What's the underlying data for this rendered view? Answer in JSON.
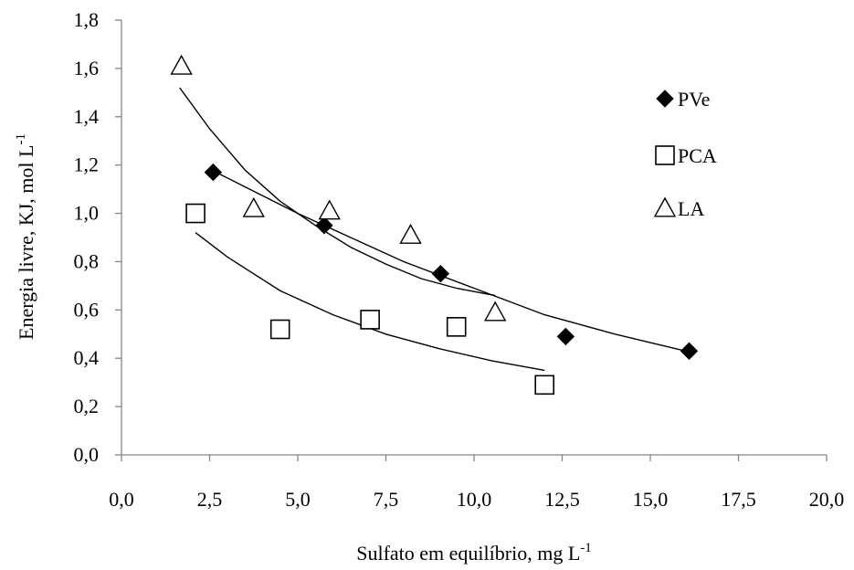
{
  "chart_data": {
    "type": "scatter",
    "title": "",
    "xlabel": "Sulfato em equilíbrio, mg L",
    "xlabel_sup": "-1",
    "ylabel": "Energia livre, KJ, mol L",
    "ylabel_sup": "-1",
    "xlim": [
      0,
      20
    ],
    "ylim": [
      0,
      1.8
    ],
    "x_ticks": [
      0,
      2.5,
      5,
      7.5,
      10,
      12.5,
      15,
      17.5,
      20
    ],
    "x_tick_labels": [
      "0,0",
      "2,5",
      "5,0",
      "7,5",
      "10,0",
      "12,5",
      "15,0",
      "17,5",
      "20,0"
    ],
    "y_ticks": [
      0,
      0.2,
      0.4,
      0.6,
      0.8,
      1.0,
      1.2,
      1.4,
      1.6,
      1.8
    ],
    "y_tick_labels": [
      "0,0",
      "0,2",
      "0,4",
      "0,6",
      "0,8",
      "1,0",
      "1,2",
      "1,4",
      "1,6",
      "1,8"
    ],
    "grid": false,
    "legend_position": "top-right",
    "series": [
      {
        "name": "PVe",
        "marker": "diamond-filled",
        "color": "#000000",
        "points": [
          [
            2.6,
            1.17
          ],
          [
            5.75,
            0.95
          ],
          [
            9.05,
            0.75
          ],
          [
            12.6,
            0.49
          ],
          [
            16.1,
            0.43
          ]
        ],
        "trend": [
          [
            2.55,
            1.18
          ],
          [
            3.5,
            1.11
          ],
          [
            5.0,
            1.0
          ],
          [
            6.5,
            0.9
          ],
          [
            8.0,
            0.8
          ],
          [
            10.0,
            0.69
          ],
          [
            12.0,
            0.58
          ],
          [
            14.0,
            0.5
          ],
          [
            16.0,
            0.43
          ]
        ]
      },
      {
        "name": "PCA",
        "marker": "square-open",
        "color": "#000000",
        "points": [
          [
            2.1,
            1.0
          ],
          [
            4.5,
            0.52
          ],
          [
            7.05,
            0.56
          ],
          [
            9.5,
            0.53
          ],
          [
            12.0,
            0.29
          ]
        ],
        "trend": [
          [
            2.1,
            0.92
          ],
          [
            3.0,
            0.82
          ],
          [
            4.5,
            0.68
          ],
          [
            6.0,
            0.58
          ],
          [
            7.5,
            0.5
          ],
          [
            9.0,
            0.44
          ],
          [
            10.5,
            0.39
          ],
          [
            12.0,
            0.35
          ]
        ]
      },
      {
        "name": "LA",
        "marker": "triangle-open",
        "color": "#000000",
        "points": [
          [
            1.7,
            1.61
          ],
          [
            3.75,
            1.02
          ],
          [
            5.9,
            1.01
          ],
          [
            8.2,
            0.91
          ],
          [
            10.6,
            0.59
          ]
        ],
        "trend": [
          [
            1.65,
            1.52
          ],
          [
            2.5,
            1.35
          ],
          [
            3.5,
            1.18
          ],
          [
            4.5,
            1.05
          ],
          [
            5.5,
            0.95
          ],
          [
            6.5,
            0.86
          ],
          [
            7.5,
            0.79
          ],
          [
            8.5,
            0.73
          ],
          [
            9.5,
            0.69
          ],
          [
            10.6,
            0.66
          ]
        ]
      }
    ]
  }
}
